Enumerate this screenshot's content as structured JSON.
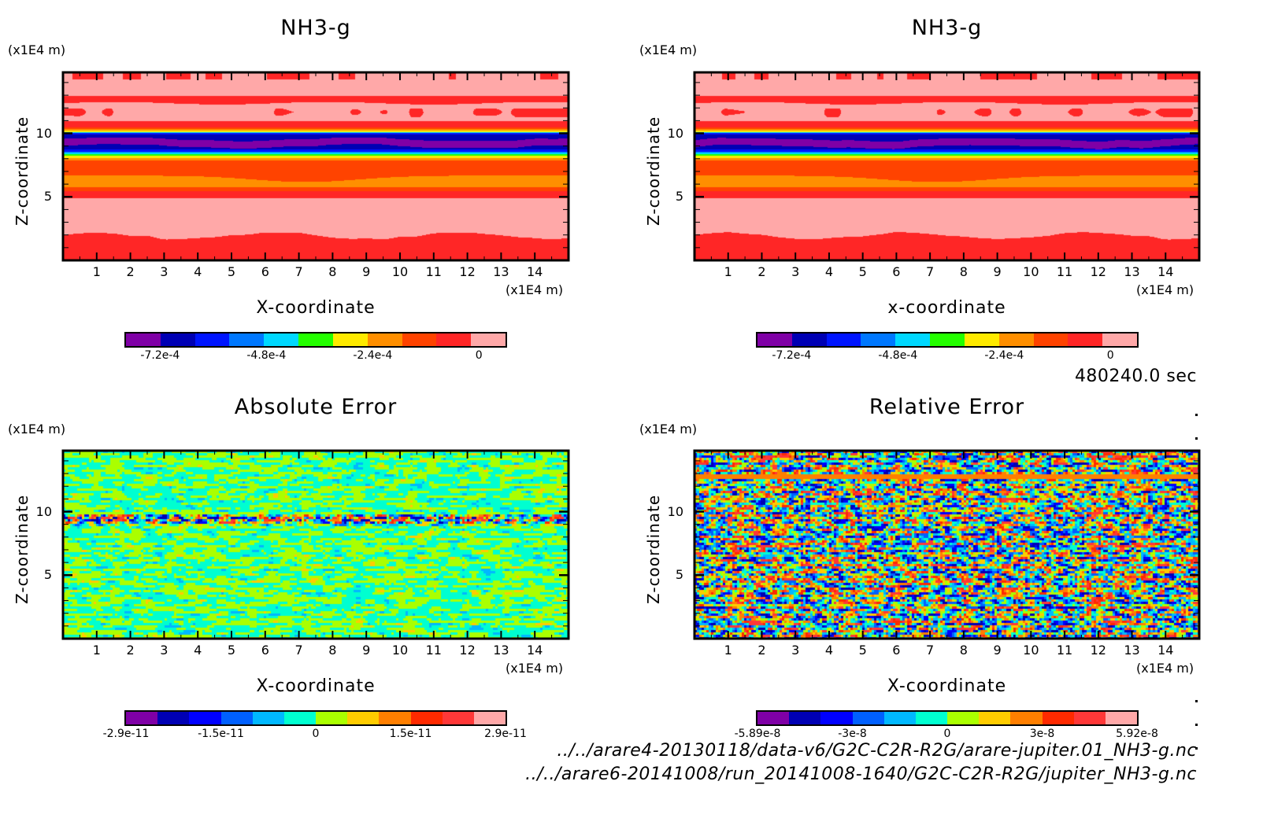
{
  "chart_data": [
    {
      "type": "heatmap",
      "panel": "top-left",
      "title": "NH3-g",
      "xlabel": "X-coordinate",
      "ylabel": "Z-coordinate",
      "x_unit": "(x1E4 m)",
      "y_unit": "(x1E4 m)",
      "xlim": [
        0,
        15
      ],
      "ylim": [
        0,
        14.8
      ],
      "x_ticks": [
        1,
        2,
        3,
        4,
        5,
        6,
        7,
        8,
        9,
        10,
        11,
        12,
        13,
        14
      ],
      "y_ticks": [
        5,
        10
      ],
      "colorbar": {
        "colors": [
          "#7f00a6",
          "#0000b4",
          "#0015ff",
          "#0078ff",
          "#00d8ff",
          "#24ff00",
          "#ffeb00",
          "#ff8f00",
          "#ff4300",
          "#ff2626",
          "#ffa8a8"
        ],
        "tick_labels": [
          "-7.2e-4",
          "-4.8e-4",
          "-2.4e-4",
          "0"
        ],
        "tick_values": [
          -0.00072,
          -0.00048,
          -0.00024,
          0
        ]
      },
      "field": "layered"
    },
    {
      "type": "heatmap",
      "panel": "top-right",
      "title": "NH3-g",
      "xlabel": "x-coordinate",
      "ylabel": "Z-coordinate",
      "x_unit": "(x1E4 m)",
      "y_unit": "(x1E4 m)",
      "xlim": [
        0,
        15
      ],
      "ylim": [
        0,
        14.8
      ],
      "x_ticks": [
        1,
        2,
        3,
        4,
        5,
        6,
        7,
        8,
        9,
        10,
        11,
        12,
        13,
        14
      ],
      "y_ticks": [
        5,
        10
      ],
      "colorbar": {
        "colors": [
          "#7f00a6",
          "#0000b4",
          "#0015ff",
          "#0078ff",
          "#00d8ff",
          "#24ff00",
          "#ffeb00",
          "#ff8f00",
          "#ff4300",
          "#ff2626",
          "#ffa8a8"
        ],
        "tick_labels": [
          "-7.2e-4",
          "-4.8e-4",
          "-2.4e-4",
          "0"
        ],
        "tick_values": [
          -0.00072,
          -0.00048,
          -0.00024,
          0
        ]
      },
      "field": "layered"
    },
    {
      "type": "heatmap",
      "panel": "bottom-left",
      "title": "Absolute Error",
      "xlabel": "X-coordinate",
      "ylabel": "Z-coordinate",
      "x_unit": "(x1E4 m)",
      "y_unit": "(x1E4 m)",
      "xlim": [
        0,
        15
      ],
      "ylim": [
        0,
        14.8
      ],
      "x_ticks": [
        1,
        2,
        3,
        4,
        5,
        6,
        7,
        8,
        9,
        10,
        11,
        12,
        13,
        14
      ],
      "y_ticks": [
        5,
        10
      ],
      "colorbar": {
        "colors": [
          "#7f00a6",
          "#0000b4",
          "#0000ff",
          "#0060ff",
          "#00b8ff",
          "#00ffd0",
          "#aaff00",
          "#ffcc00",
          "#ff7f00",
          "#ff2a00",
          "#ff3838",
          "#ffa8a8"
        ],
        "tick_labels": [
          "-2.9e-11",
          "-1.5e-11",
          "0",
          "1.5e-11",
          "2.9e-11"
        ],
        "tick_values": [
          -2.9e-11,
          -1.5e-11,
          0,
          1.5e-11,
          2.9e-11
        ]
      },
      "field": "abs-error"
    },
    {
      "type": "heatmap",
      "panel": "bottom-right",
      "title": "Relative Error",
      "xlabel": "X-coordinate",
      "ylabel": "Z-coordinate",
      "x_unit": "(x1E4 m)",
      "y_unit": "(x1E4 m)",
      "xlim": [
        0,
        15
      ],
      "ylim": [
        0,
        14.8
      ],
      "x_ticks": [
        1,
        2,
        3,
        4,
        5,
        6,
        7,
        8,
        9,
        10,
        11,
        12,
        13,
        14
      ],
      "y_ticks": [
        5,
        10
      ],
      "colorbar": {
        "colors": [
          "#7f00a6",
          "#0000b4",
          "#0000ff",
          "#0060ff",
          "#00b8ff",
          "#00ffd0",
          "#aaff00",
          "#ffcc00",
          "#ff7f00",
          "#ff2a00",
          "#ff3838",
          "#ffa8a8"
        ],
        "tick_labels": [
          "-5.89e-8",
          "-3e-8",
          "0",
          "3e-8",
          "5.92e-8"
        ],
        "tick_values": [
          -5.89e-08,
          -3e-08,
          0,
          3e-08,
          5.92e-08
        ]
      },
      "field": "rel-error"
    }
  ],
  "time_label": "480240.0 sec",
  "file_paths": [
    "../../arare4-20130118/data-v6/G2C-C2R-R2G/arare-jupiter.01_NH3-g.nc",
    "../../arare6-20141008/run_20141008-1640/G2C-C2R-R2G/jupiter_NH3-g.nc"
  ]
}
